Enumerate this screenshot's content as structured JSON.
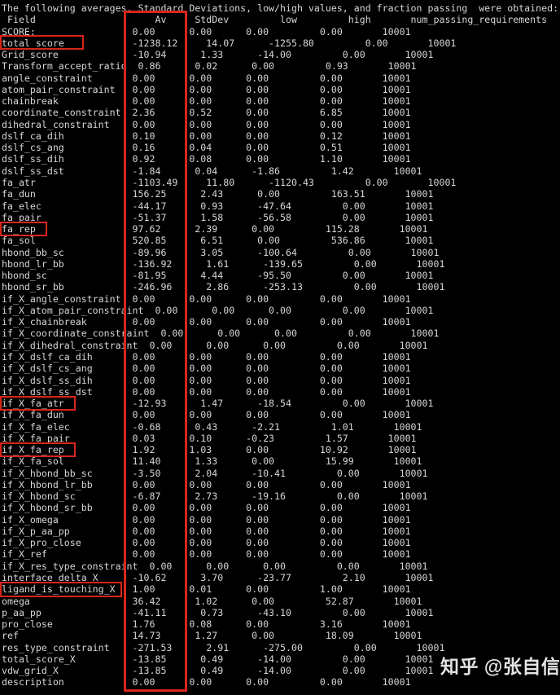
{
  "terminal": {
    "background": "#000000",
    "text_color": "#d6d6d6",
    "title_line": "The following averages, Standard Deviations, low/high values, and fraction passing  were obtained:",
    "columns": [
      "Field",
      "Av",
      "StdDev",
      "low",
      "high",
      "num_passing_requirements"
    ],
    "column_header_line": " Field                     Av     StdDev         low         high       num_passing_requirements",
    "rows": [
      [
        "SCORE:",
        "0.00",
        "0.00",
        "0.00",
        "0.00",
        "10001"
      ],
      [
        "total_score",
        "-1238.12",
        "14.07",
        "-1255.80",
        "0.00",
        "10001"
      ],
      [
        "Grid_score",
        "-10.94",
        "1.33",
        "-14.00",
        "0.00",
        "10001"
      ],
      [
        "Transform_accept_ratio",
        "0.86",
        "0.02",
        "0.00",
        "0.93",
        "10001"
      ],
      [
        "angle_constraint",
        "0.00",
        "0.00",
        "0.00",
        "0.00",
        "10001"
      ],
      [
        "atom_pair_constraint",
        "0.00",
        "0.00",
        "0.00",
        "0.00",
        "10001"
      ],
      [
        "chainbreak",
        "0.00",
        "0.00",
        "0.00",
        "0.00",
        "10001"
      ],
      [
        "coordinate_constraint",
        "2.36",
        "0.52",
        "0.00",
        "6.85",
        "10001"
      ],
      [
        "dihedral_constraint",
        "0.00",
        "0.00",
        "0.00",
        "0.00",
        "10001"
      ],
      [
        "dslf_ca_dih",
        "0.10",
        "0.00",
        "0.00",
        "0.12",
        "10001"
      ],
      [
        "dslf_cs_ang",
        "0.16",
        "0.04",
        "0.00",
        "0.51",
        "10001"
      ],
      [
        "dslf_ss_dih",
        "0.92",
        "0.08",
        "0.00",
        "1.10",
        "10001"
      ],
      [
        "dslf_ss_dst",
        "-1.84",
        "0.04",
        "-1.86",
        "1.42",
        "10001"
      ],
      [
        "fa_atr",
        "-1103.49",
        "11.80",
        "-1120.43",
        "0.00",
        "10001"
      ],
      [
        "fa_dun",
        "156.25",
        "2.43",
        "0.00",
        "163.51",
        "10001"
      ],
      [
        "fa_elec",
        "-44.17",
        "0.93",
        "-47.64",
        "0.00",
        "10001"
      ],
      [
        "fa_pair",
        "-51.37",
        "1.58",
        "-56.58",
        "0.00",
        "10001"
      ],
      [
        "fa_rep",
        "97.62",
        "2.39",
        "0.00",
        "115.28",
        "10001"
      ],
      [
        "fa_sol",
        "520.85",
        "6.51",
        "0.00",
        "536.86",
        "10001"
      ],
      [
        "hbond_bb_sc",
        "-89.96",
        "3.05",
        "-100.64",
        "0.00",
        "10001"
      ],
      [
        "hbond_lr_bb",
        "-136.92",
        "1.61",
        "-139.65",
        "0.00",
        "10001"
      ],
      [
        "hbond_sc",
        "-81.95",
        "4.44",
        "-95.50",
        "0.00",
        "10001"
      ],
      [
        "hbond_sr_bb",
        "-246.96",
        "2.86",
        "-253.13",
        "0.00",
        "10001"
      ],
      [
        "if_X_angle_constraint",
        "0.00",
        "0.00",
        "0.00",
        "0.00",
        "10001"
      ],
      [
        "if_X_atom_pair_constraint",
        "0.00",
        "0.00",
        "0.00",
        "0.00",
        "10001"
      ],
      [
        "if_X_chainbreak",
        "0.00",
        "0.00",
        "0.00",
        "0.00",
        "10001"
      ],
      [
        "if_X_coordinate_constraint",
        "0.00",
        "0.00",
        "0.00",
        "0.00",
        "10001"
      ],
      [
        "if_X_dihedral_constraint",
        "0.00",
        "0.00",
        "0.00",
        "0.00",
        "10001"
      ],
      [
        "if_X_dslf_ca_dih",
        "0.00",
        "0.00",
        "0.00",
        "0.00",
        "10001"
      ],
      [
        "if_X_dslf_cs_ang",
        "0.00",
        "0.00",
        "0.00",
        "0.00",
        "10001"
      ],
      [
        "if_X_dslf_ss_dih",
        "0.00",
        "0.00",
        "0.00",
        "0.00",
        "10001"
      ],
      [
        "if_X_dslf_ss_dst",
        "0.00",
        "0.00",
        "0.00",
        "0.00",
        "10001"
      ],
      [
        "if_X_fa_atr",
        "-12.93",
        "1.47",
        "-18.54",
        "0.00",
        "10001"
      ],
      [
        "if_X_fa_dun",
        "0.00",
        "0.00",
        "0.00",
        "0.00",
        "10001"
      ],
      [
        "if_X_fa_elec",
        "-0.68",
        "0.43",
        "-2.21",
        "1.01",
        "10001"
      ],
      [
        "if_X_fa_pair",
        "0.03",
        "0.10",
        "-0.23",
        "1.57",
        "10001"
      ],
      [
        "if_X_fa_rep",
        "1.92",
        "1.03",
        "0.00",
        "10.92",
        "10001"
      ],
      [
        "if_X_fa_sol",
        "11.40",
        "1.33",
        "0.00",
        "15.99",
        "10001"
      ],
      [
        "if_X_hbond_bb_sc",
        "-3.50",
        "2.04",
        "-10.41",
        "0.00",
        "10001"
      ],
      [
        "if_X_hbond_lr_bb",
        "0.00",
        "0.00",
        "0.00",
        "0.00",
        "10001"
      ],
      [
        "if_X_hbond_sc",
        "-6.87",
        "2.73",
        "-19.16",
        "0.00",
        "10001"
      ],
      [
        "if_X_hbond_sr_bb",
        "0.00",
        "0.00",
        "0.00",
        "0.00",
        "10001"
      ],
      [
        "if_X_omega",
        "0.00",
        "0.00",
        "0.00",
        "0.00",
        "10001"
      ],
      [
        "if_X_p_aa_pp",
        "0.00",
        "0.00",
        "0.00",
        "0.00",
        "10001"
      ],
      [
        "if_X_pro_close",
        "0.00",
        "0.00",
        "0.00",
        "0.00",
        "10001"
      ],
      [
        "if_X_ref",
        "0.00",
        "0.00",
        "0.00",
        "0.00",
        "10001"
      ],
      [
        "if_X_res_type_constraint",
        "0.00",
        "0.00",
        "0.00",
        "0.00",
        "10001"
      ],
      [
        "interface_delta_X",
        "-10.62",
        "3.70",
        "-23.77",
        "2.10",
        "10001"
      ],
      [
        "ligand_is_touching_X",
        "1.00",
        "0.01",
        "0.00",
        "1.00",
        "10001"
      ],
      [
        "omega",
        "36.42",
        "1.02",
        "0.00",
        "52.87",
        "10001"
      ],
      [
        "p_aa_pp",
        "-41.11",
        "0.73",
        "-43.10",
        "0.00",
        "10001"
      ],
      [
        "pro_close",
        "1.76",
        "0.08",
        "0.00",
        "3.16",
        "10001"
      ],
      [
        "ref",
        "14.73",
        "1.27",
        "0.00",
        "18.09",
        "10001"
      ],
      [
        "res_type_constraint",
        "-271.53",
        "2.91",
        "-275.00",
        "0.00",
        "10001"
      ],
      [
        "total_score_X",
        "-13.85",
        "0.49",
        "-14.00",
        "0.00",
        "10001"
      ],
      [
        "vdw_grid_X",
        "-13.85",
        "0.49",
        "-14.00",
        "0.00",
        "10001"
      ],
      [
        "description",
        "0.00",
        "0.00",
        "0.00",
        "0.00",
        "10001"
      ]
    ]
  },
  "annotations": {
    "highlight_color": "#d9251b",
    "highlighted_fields": [
      "total_score",
      "fa_rep",
      "if_X_fa_atr",
      "if_X_fa_rep",
      "ligand_is_touching_X"
    ],
    "highlighted_column": "Av"
  },
  "watermark": {
    "text": "知乎 @张自信"
  }
}
